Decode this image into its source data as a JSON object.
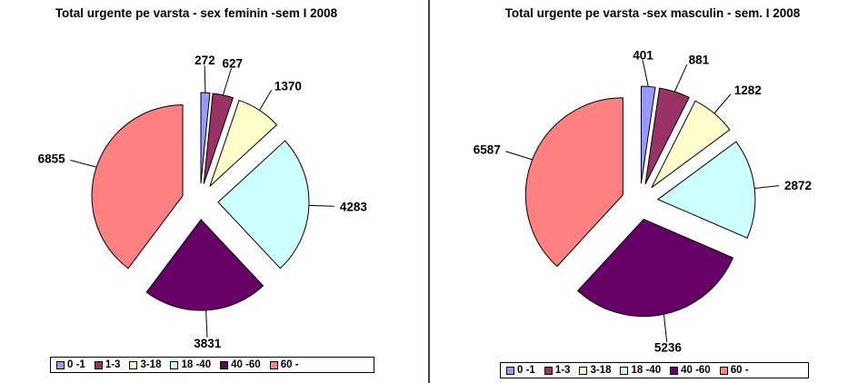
{
  "chart_data": [
    {
      "type": "pie",
      "title": "Total urgente pe varsta - sex feminin  -sem I 2008",
      "categories": [
        "0 -1",
        "1-3",
        "3-18",
        "18 -40",
        "40 -60",
        "60 -"
      ],
      "values": [
        272,
        627,
        1370,
        4283,
        3831,
        6855
      ],
      "colors": [
        "#9999FF",
        "#993366",
        "#FFFFCC",
        "#CCFFFF",
        "#660066",
        "#FF8080"
      ],
      "exploded": true,
      "data_labels": true,
      "legend": "bottom"
    },
    {
      "type": "pie",
      "title": "Total urgente pe varsta -sex masculin  - sem. I 2008",
      "categories": [
        "0 -1",
        "1-3",
        "3-18",
        "18 -40",
        "40 -60",
        "60 -"
      ],
      "values": [
        401,
        881,
        1282,
        2872,
        5236,
        6587
      ],
      "colors": [
        "#9999FF",
        "#993366",
        "#FFFFCC",
        "#CCFFFF",
        "#660066",
        "#FF8080"
      ],
      "exploded": true,
      "data_labels": true,
      "legend": "bottom"
    }
  ]
}
